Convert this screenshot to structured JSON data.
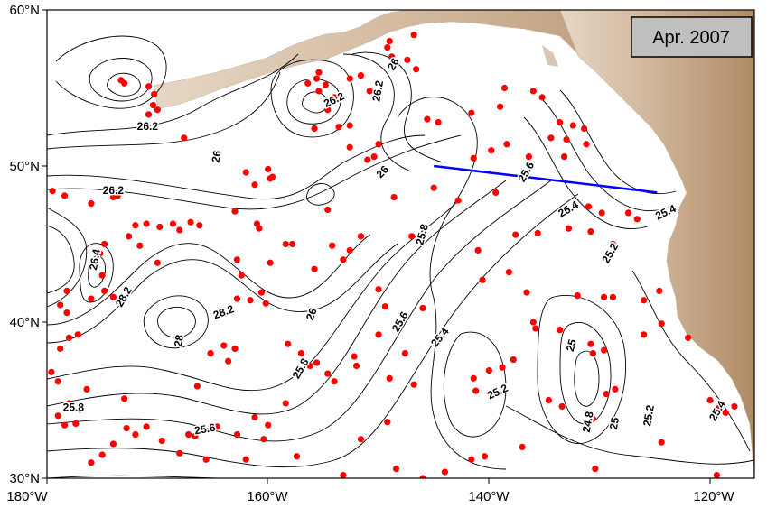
{
  "title": "Apr. 2007",
  "axes": {
    "x_ticks": [
      "180°W",
      "160°W",
      "140°W",
      "120°W"
    ],
    "y_ticks": [
      "60°N",
      "50°N",
      "40°N",
      "30°N"
    ]
  },
  "contour_labels": [
    {
      "text": "26.2",
      "lon": -170.9,
      "lat": 52.5,
      "rot": 0
    },
    {
      "text": "26.2",
      "lon": -154.0,
      "lat": 54.2,
      "rot": -25
    },
    {
      "text": "26.2",
      "lon": -150.0,
      "lat": 54.8,
      "rot": -80
    },
    {
      "text": "26",
      "lon": -148.6,
      "lat": 56.5,
      "rot": -60
    },
    {
      "text": "26",
      "lon": -164.6,
      "lat": 50.6,
      "rot": -80
    },
    {
      "text": "26",
      "lon": -149.6,
      "lat": 49.6,
      "rot": -45
    },
    {
      "text": "26.2",
      "lon": -174.0,
      "lat": 48.4,
      "rot": 0
    },
    {
      "text": "26.4",
      "lon": -175.6,
      "lat": 44.0,
      "rot": -80
    },
    {
      "text": "28.2",
      "lon": -173.0,
      "lat": 41.6,
      "rot": -60
    },
    {
      "text": "28.2",
      "lon": -164.0,
      "lat": 40.6,
      "rot": -20
    },
    {
      "text": "26",
      "lon": -156.0,
      "lat": 40.5,
      "rot": -70
    },
    {
      "text": "28",
      "lon": -168.0,
      "lat": 38.8,
      "rot": -80
    },
    {
      "text": "25.8",
      "lon": -157.0,
      "lat": 37.0,
      "rot": -60
    },
    {
      "text": "25.8",
      "lon": -146.0,
      "lat": 45.6,
      "rot": -75
    },
    {
      "text": "25.6",
      "lon": -148.0,
      "lat": 40.0,
      "rot": -60
    },
    {
      "text": "25.4",
      "lon": -144.4,
      "lat": 39.0,
      "rot": -50
    },
    {
      "text": "25.2",
      "lon": -139.2,
      "lat": 35.5,
      "rot": -25
    },
    {
      "text": "25.6",
      "lon": -136.6,
      "lat": 49.6,
      "rot": -60
    },
    {
      "text": "25.4",
      "lon": -132.8,
      "lat": 47.2,
      "rot": -30
    },
    {
      "text": "25.4",
      "lon": -124.0,
      "lat": 47.0,
      "rot": -25
    },
    {
      "text": "25.2",
      "lon": -129.0,
      "lat": 44.4,
      "rot": -60
    },
    {
      "text": "25.8",
      "lon": -177.6,
      "lat": 34.5,
      "rot": 0
    },
    {
      "text": "25.6",
      "lon": -165.7,
      "lat": 33.1,
      "rot": -10
    },
    {
      "text": "25",
      "lon": -132.5,
      "lat": 38.5,
      "rot": -75
    },
    {
      "text": "24.8",
      "lon": -131.0,
      "lat": 33.6,
      "rot": -80
    },
    {
      "text": "25",
      "lon": -128.6,
      "lat": 33.5,
      "rot": -80
    },
    {
      "text": "25.2",
      "lon": -125.5,
      "lat": 34.0,
      "rot": -80
    },
    {
      "text": "25.4",
      "lon": -119.3,
      "lat": 34.3,
      "rot": -60
    }
  ],
  "section_line": {
    "color": "#0000ff",
    "lon1": -145.0,
    "lat1": 50.0,
    "lon2": -124.8,
    "lat2": 48.3
  },
  "float_color": "#ff0000",
  "floats": [
    [
      -173.3,
      55.5
    ],
    [
      -173.0,
      55.3
    ],
    [
      -170.8,
      55.1
    ],
    [
      -170.3,
      54.6
    ],
    [
      -170.4,
      53.9
    ],
    [
      -170.0,
      53.6
    ],
    [
      -170.8,
      53.3
    ],
    [
      -167.6,
      51.8
    ],
    [
      -170.0,
      43.8
    ],
    [
      -172.6,
      45.5
    ],
    [
      -171.6,
      44.9
    ],
    [
      -174.8,
      45.0
    ],
    [
      -175.2,
      44.4
    ],
    [
      -175.0,
      43.0
    ],
    [
      -174.8,
      42.0
    ],
    [
      -174.0,
      41.6
    ],
    [
      -176.0,
      41.5
    ],
    [
      -178.2,
      42.0
    ],
    [
      -178.8,
      41.1
    ],
    [
      -178.2,
      40.6
    ],
    [
      -178.0,
      39.0
    ],
    [
      -177.2,
      39.2
    ],
    [
      -178.8,
      38.3
    ],
    [
      -179.6,
      36.8
    ],
    [
      -179.0,
      36.2
    ],
    [
      -176.4,
      35.7
    ],
    [
      -179.5,
      48.4
    ],
    [
      -178.4,
      48.1
    ],
    [
      -176.0,
      47.6
    ],
    [
      -174.0,
      48.0
    ],
    [
      -173.6,
      48.1
    ],
    [
      -172.0,
      46.2
    ],
    [
      -171.0,
      46.3
    ],
    [
      -169.8,
      46.1
    ],
    [
      -168.6,
      46.3
    ],
    [
      -167.0,
      46.4
    ],
    [
      -166.2,
      46.2
    ],
    [
      -168.0,
      45.9
    ],
    [
      -163.0,
      47.1
    ],
    [
      -161.0,
      46.3
    ],
    [
      -160.8,
      46.0
    ],
    [
      -160.0,
      49.8
    ],
    [
      -159.6,
      49.3
    ],
    [
      -161.2,
      48.8
    ],
    [
      -158.4,
      45.0
    ],
    [
      -157.8,
      45.0
    ],
    [
      -154.6,
      47.2
    ],
    [
      -153.2,
      44.0
    ],
    [
      -152.6,
      44.6
    ],
    [
      -151.6,
      45.5
    ],
    [
      -154.2,
      44.9
    ],
    [
      -155.8,
      43.4
    ],
    [
      -159.8,
      43.8
    ],
    [
      -160.6,
      41.9
    ],
    [
      -161.6,
      41.4
    ],
    [
      -162.8,
      41.5
    ],
    [
      -162.4,
      43.0
    ],
    [
      -162.8,
      44.0
    ],
    [
      -160.2,
      41.2
    ],
    [
      -163.0,
      38.3
    ],
    [
      -164.0,
      38.5
    ],
    [
      -165.2,
      38.0
    ],
    [
      -163.6,
      37.5
    ],
    [
      -158.2,
      38.6
    ],
    [
      -157.0,
      38.0
    ],
    [
      -156.2,
      37.2
    ],
    [
      -154.6,
      36.7
    ],
    [
      -152.0,
      37.2
    ],
    [
      -150.0,
      42.1
    ],
    [
      -149.4,
      41.0
    ],
    [
      -146.0,
      40.9
    ],
    [
      -147.6,
      38.0
    ],
    [
      -150.0,
      39.2
    ],
    [
      -154.0,
      36.2
    ],
    [
      -158.4,
      34.8
    ],
    [
      -160.0,
      33.4
    ],
    [
      -161.2,
      33.9
    ],
    [
      -162.8,
      32.8
    ],
    [
      -164.6,
      33.3
    ],
    [
      -165.6,
      31.2
    ],
    [
      -166.6,
      32.7
    ],
    [
      -167.2,
      32.8
    ],
    [
      -168.0,
      31.6
    ],
    [
      -169.6,
      32.4
    ],
    [
      -171.0,
      33.3
    ],
    [
      -172.0,
      32.8
    ],
    [
      -172.8,
      33.2
    ],
    [
      -174.0,
      32.2
    ],
    [
      -175.0,
      31.5
    ],
    [
      -176.0,
      31.0
    ],
    [
      -177.0,
      34.4
    ],
    [
      -178.0,
      34.8
    ],
    [
      -179.0,
      34.0
    ],
    [
      -177.4,
      33.5
    ],
    [
      -178.4,
      33.4
    ],
    [
      -173.0,
      35.1
    ],
    [
      -166.4,
      35.9
    ],
    [
      -162.0,
      31.2
    ],
    [
      -160.4,
      32.5
    ],
    [
      -157.4,
      31.4
    ],
    [
      -153.2,
      30.2
    ],
    [
      -151.6,
      32.5
    ],
    [
      -149.2,
      33.6
    ],
    [
      -148.4,
      30.6
    ],
    [
      -146.0,
      30.0
    ],
    [
      -144.0,
      30.4
    ],
    [
      -140.4,
      31.4
    ],
    [
      -137.0,
      32.0
    ],
    [
      -134.6,
      35.0
    ],
    [
      -133.4,
      34.6
    ],
    [
      -130.6,
      33.8
    ],
    [
      -129.4,
      35.4
    ],
    [
      -128.6,
      35.7
    ],
    [
      -130.4,
      30.6
    ],
    [
      -124.4,
      32.3
    ],
    [
      -119.4,
      30.2
    ],
    [
      -118.6,
      34.2
    ],
    [
      -117.8,
      34.6
    ],
    [
      -119.2,
      34.5
    ],
    [
      -120.0,
      35.0
    ],
    [
      -122.0,
      39.0
    ],
    [
      -124.4,
      39.9
    ],
    [
      -126.0,
      39.2
    ],
    [
      -129.6,
      38.2
    ],
    [
      -130.6,
      38.0
    ],
    [
      -130.8,
      38.6
    ],
    [
      -133.6,
      39.5
    ],
    [
      -135.8,
      39.6
    ],
    [
      -136.0,
      40.0
    ],
    [
      -137.8,
      37.6
    ],
    [
      -138.8,
      37.1
    ],
    [
      -140.0,
      36.9
    ],
    [
      -141.4,
      36.4
    ],
    [
      -141.2,
      35.6
    ],
    [
      -141.6,
      31.2
    ],
    [
      -146.8,
      36.0
    ],
    [
      -149.0,
      36.4
    ],
    [
      -152.2,
      37.8
    ],
    [
      -155.6,
      37.4
    ],
    [
      -140.6,
      42.7
    ],
    [
      -136.6,
      41.9
    ],
    [
      -132.0,
      41.7
    ],
    [
      -129.6,
      41.6
    ],
    [
      -128.8,
      41.6
    ],
    [
      -126.0,
      41.4
    ],
    [
      -124.6,
      42.0
    ],
    [
      -128.8,
      45.0
    ],
    [
      -129.8,
      47.0
    ],
    [
      -131.0,
      47.4
    ],
    [
      -127.4,
      47.0
    ],
    [
      -126.6,
      46.6
    ],
    [
      -130.8,
      45.8
    ],
    [
      -132.8,
      46.0
    ],
    [
      -135.6,
      45.7
    ],
    [
      -137.6,
      45.6
    ],
    [
      -141.0,
      44.6
    ],
    [
      -142.8,
      47.8
    ],
    [
      -145.0,
      48.6
    ],
    [
      -148.6,
      48.0
    ],
    [
      -147.0,
      45.5
    ],
    [
      -138.2,
      43.2
    ],
    [
      -139.4,
      48.3
    ],
    [
      -141.4,
      50.5
    ],
    [
      -139.8,
      51.0
    ],
    [
      -138.4,
      51.4
    ],
    [
      -136.4,
      50.6
    ],
    [
      -133.2,
      50.6
    ],
    [
      -133.6,
      52.8
    ],
    [
      -132.4,
      52.6
    ],
    [
      -131.4,
      52.4
    ],
    [
      -131.2,
      51.4
    ],
    [
      -133.0,
      51.7
    ],
    [
      -134.4,
      51.8
    ],
    [
      -136.0,
      54.8
    ],
    [
      -135.2,
      54.4
    ],
    [
      -138.6,
      55.0
    ],
    [
      -139.0,
      53.8
    ],
    [
      -141.6,
      53.4
    ],
    [
      -144.6,
      52.8
    ],
    [
      -145.6,
      53.0
    ],
    [
      -146.6,
      56.2
    ],
    [
      -147.4,
      56.8
    ],
    [
      -148.8,
      57.0
    ],
    [
      -149.2,
      57.6
    ],
    [
      -146.8,
      58.4
    ],
    [
      -149.0,
      58.0
    ],
    [
      -150.0,
      51.4
    ],
    [
      -150.4,
      50.6
    ],
    [
      -151.0,
      50.4
    ],
    [
      -152.6,
      51.2
    ],
    [
      -153.6,
      52.5
    ],
    [
      -155.8,
      52.4
    ],
    [
      -154.6,
      53.6
    ],
    [
      -154.0,
      54.4
    ],
    [
      -155.4,
      54.8
    ],
    [
      -156.4,
      55.3
    ],
    [
      -155.6,
      55.6
    ],
    [
      -152.6,
      52.6
    ],
    [
      -150.8,
      54.8
    ],
    [
      -151.6,
      55.8
    ],
    [
      -152.6,
      55.6
    ],
    [
      -155.4,
      56.0
    ],
    [
      -154.8,
      55.2
    ],
    [
      -159.8,
      49.2
    ],
    [
      -162.0,
      49.6
    ]
  ]
}
